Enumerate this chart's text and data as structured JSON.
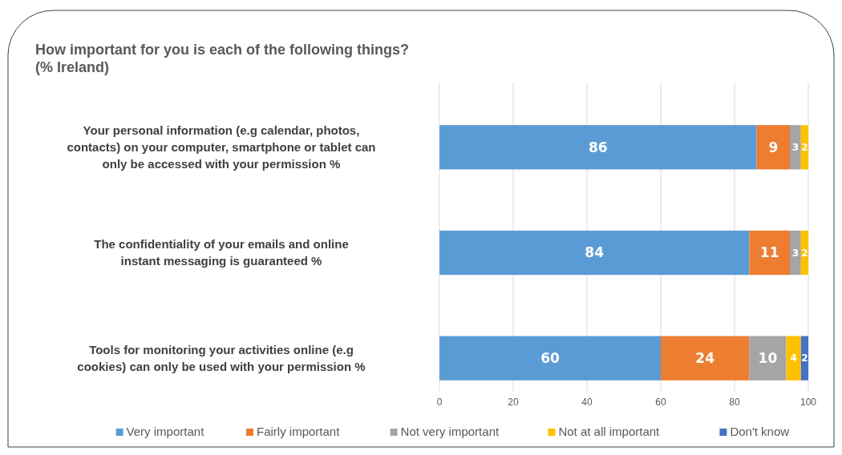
{
  "chart_data": {
    "type": "bar",
    "orientation": "horizontal",
    "stacked": true,
    "title": "How important for you is each of the following things?\n(% Ireland)",
    "categories": [
      "Your personal information (e.g calendar, photos, contacts) on your computer, smartphone or tablet can only be accessed with your permission %",
      "The confidentiality of your emails and online instant messaging is guaranteed %",
      "Tools for monitoring your activities online (e.g cookies) can only be used with your permission %"
    ],
    "series": [
      {
        "name": "Very important",
        "color": "#5b9bd5",
        "values": [
          86,
          84,
          60
        ]
      },
      {
        "name": "Fairly important",
        "color": "#ed7d31",
        "values": [
          9,
          11,
          24
        ]
      },
      {
        "name": "Not very important",
        "color": "#a5a5a5",
        "values": [
          3,
          3,
          10
        ]
      },
      {
        "name": "Not at all important",
        "color": "#ffc000",
        "values": [
          2,
          2,
          4
        ]
      },
      {
        "name": "Don't know",
        "color": "#4472c4",
        "values": [
          null,
          null,
          2
        ]
      }
    ],
    "xlim": [
      0,
      100
    ],
    "xticks": [
      0,
      20,
      40,
      60,
      80,
      100
    ],
    "grid": "x",
    "legend": "bottom",
    "data_labels": true
  }
}
